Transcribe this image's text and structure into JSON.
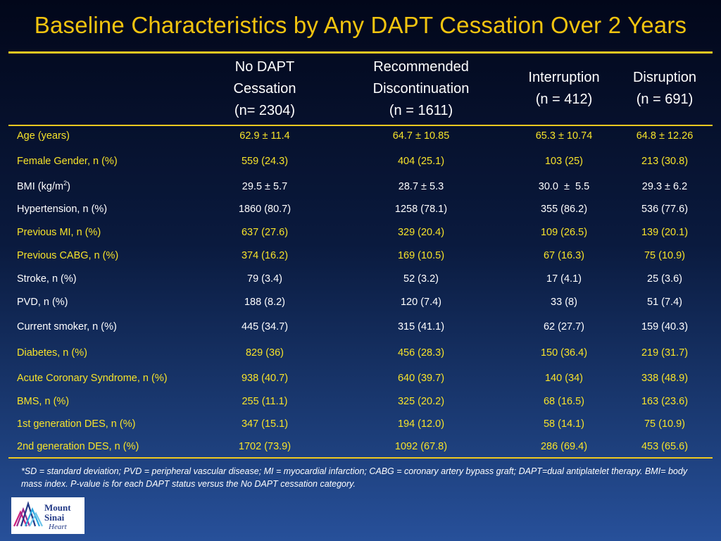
{
  "title": "Baseline Characteristics by Any DAPT Cessation Over 2 Years",
  "table": {
    "headers": [
      {
        "lines": [
          ""
        ]
      },
      {
        "lines": [
          "No DAPT",
          "Cessation",
          "(n= 2304)"
        ]
      },
      {
        "lines": [
          "Recommended",
          "Discontinuation",
          "(n = 1611)"
        ]
      },
      {
        "lines": [
          "Interruption",
          "(n = 412)"
        ]
      },
      {
        "lines": [
          "Disruption",
          "(n = 691)"
        ]
      }
    ],
    "rows": [
      {
        "label": "Age (years)",
        "color": "yellow",
        "values": [
          "62.9 ± 11.4",
          "64.7 ± 10.85",
          "65.3 ± 10.74",
          "64.8 ± 12.26"
        ]
      },
      {
        "label": "Female Gender, n (%)",
        "color": "yellow",
        "values": [
          "559 (24.3)",
          "404 (25.1)",
          "103 (25)",
          "213 (30.8)"
        ]
      },
      {
        "label": "BMI (kg/m",
        "label_sup": "2",
        "label_suffix": ")",
        "color": "white",
        "values": [
          "29.5 ± 5.7",
          "28.7 ± 5.3",
          "30.0  ±  5.5",
          "29.3 ± 6.2"
        ]
      },
      {
        "label": "Hypertension, n (%)",
        "color": "white",
        "values": [
          "1860 (80.7)",
          "1258 (78.1)",
          "355 (86.2)",
          "536 (77.6)"
        ]
      },
      {
        "label": "Previous MI, n (%)",
        "color": "yellow",
        "values": [
          "637 (27.6)",
          "329 (20.4)",
          "109 (26.5)",
          "139 (20.1)"
        ]
      },
      {
        "label": "Previous CABG, n (%)",
        "color": "yellow",
        "values": [
          "374 (16.2)",
          "169 (10.5)",
          "67 (16.3)",
          "75 (10.9)"
        ]
      },
      {
        "label": "Stroke, n (%)",
        "color": "white",
        "values": [
          "79 (3.4)",
          "52 (3.2)",
          "17 (4.1)",
          "25 (3.6)"
        ]
      },
      {
        "label": "PVD, n (%)",
        "color": "white",
        "values": [
          "188 (8.2)",
          "120 (7.4)",
          "33 (8)",
          "51 (7.4)"
        ]
      },
      {
        "label": "Current smoker, n (%)",
        "color": "white",
        "values": [
          "445 (34.7)",
          "315 (41.1)",
          "62 (27.7)",
          "159 (40.3)"
        ]
      },
      {
        "label": "Diabetes, n (%)",
        "color": "yellow",
        "values": [
          "829 (36)",
          "456 (28.3)",
          "150 (36.4)",
          "219 (31.7)"
        ]
      },
      {
        "label": "Acute Coronary Syndrome, n (%)",
        "color": "yellow",
        "values": [
          "938 (40.7)",
          "640 (39.7)",
          "140 (34)",
          "338 (48.9)"
        ]
      },
      {
        "label": "BMS, n (%)",
        "color": "yellow",
        "values": [
          "255 (11.1)",
          "325 (20.2)",
          "68 (16.5)",
          "163 (23.6)"
        ]
      },
      {
        "label": "1st generation DES, n (%)",
        "color": "yellow",
        "values": [
          "347 (15.1)",
          "194 (12.0)",
          "58 (14.1)",
          "75 (10.9)"
        ]
      },
      {
        "label": "2nd generation DES, n (%)",
        "color": "yellow",
        "values": [
          "1702 (73.9)",
          "1092 (67.8)",
          "286 (69.4)",
          "453 (65.6)"
        ]
      }
    ]
  },
  "footnote": "*SD = standard deviation; PVD = peripheral vascular disease; MI = myocardial infarction; CABG = coronary artery bypass graft; DAPT=dual antiplatelet therapy. BMI= body mass index. P-value is for each DAPT status versus the No DAPT cessation category.",
  "logo": {
    "line1": "Mount",
    "line2": "Sinai",
    "line3": "Heart",
    "icon": "mount-sinai-logo-icon"
  },
  "colors": {
    "title": "#f2c40f",
    "rule": "#f0c820",
    "yellow_text": "#f7e32a",
    "white_text": "#ffffff",
    "background_top": "#02071a",
    "background_bottom": "#27509a",
    "logo_navy": "#233a87",
    "logo_magenta": "#cc1f7c",
    "logo_cyan": "#28a7e0"
  }
}
